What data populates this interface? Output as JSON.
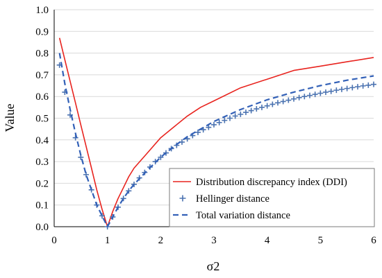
{
  "chart_data": {
    "type": "line",
    "xlabel": "σ2",
    "ylabel": "Value",
    "xlim": [
      0,
      6
    ],
    "ylim": [
      0,
      1
    ],
    "x_ticks": [
      "0",
      "1",
      "2",
      "3",
      "4",
      "5",
      "6"
    ],
    "y_ticks": [
      "0.0",
      "0.1",
      "0.2",
      "0.3",
      "0.4",
      "0.5",
      "0.6",
      "0.7",
      "0.8",
      "0.9",
      "1.0"
    ],
    "grid": "horizontal",
    "legend_position": "bottom-right",
    "series": [
      {
        "name": "Distribution discrepancy index (DDI)",
        "style": "solid-line",
        "color": "#e8231e",
        "x": [
          0.1,
          0.2,
          0.3,
          0.4,
          0.5,
          0.6,
          0.7,
          0.8,
          0.9,
          1.0,
          1.1,
          1.2,
          1.3,
          1.4,
          1.5,
          1.75,
          2.0,
          2.25,
          2.5,
          2.75,
          3.0,
          3.5,
          4.0,
          4.5,
          5.0,
          5.5,
          6.0
        ],
        "y": [
          0.87,
          0.77,
          0.67,
          0.57,
          0.47,
          0.37,
          0.27,
          0.17,
          0.08,
          0.0,
          0.07,
          0.13,
          0.18,
          0.23,
          0.27,
          0.34,
          0.41,
          0.46,
          0.51,
          0.55,
          0.58,
          0.64,
          0.68,
          0.72,
          0.74,
          0.76,
          0.78
        ]
      },
      {
        "name": "Hellinger distance",
        "style": "plus-markers",
        "color": "#4a72b0",
        "x": [
          0.1,
          0.2,
          0.3,
          0.4,
          0.5,
          0.6,
          0.7,
          0.8,
          0.9,
          1.0,
          1.1,
          1.2,
          1.3,
          1.4,
          1.5,
          1.6,
          1.7,
          1.8,
          1.9,
          2.0,
          2.1,
          2.2,
          2.3,
          2.4,
          2.5,
          2.6,
          2.7,
          2.8,
          2.9,
          3.0,
          3.1,
          3.2,
          3.3,
          3.4,
          3.5,
          3.6,
          3.7,
          3.8,
          3.9,
          4.0,
          4.1,
          4.2,
          4.3,
          4.4,
          4.5,
          4.6,
          4.7,
          4.8,
          4.9,
          5.0,
          5.1,
          5.2,
          5.3,
          5.4,
          5.5,
          5.6,
          5.7,
          5.8,
          5.9,
          6.0
        ],
        "y": [
          0.745,
          0.62,
          0.515,
          0.41,
          0.32,
          0.24,
          0.17,
          0.1,
          0.05,
          0.0,
          0.045,
          0.09,
          0.13,
          0.165,
          0.195,
          0.225,
          0.25,
          0.275,
          0.3,
          0.32,
          0.34,
          0.36,
          0.375,
          0.39,
          0.405,
          0.42,
          0.435,
          0.447,
          0.458,
          0.47,
          0.48,
          0.49,
          0.5,
          0.51,
          0.518,
          0.527,
          0.535,
          0.543,
          0.55,
          0.557,
          0.564,
          0.571,
          0.577,
          0.583,
          0.589,
          0.595,
          0.6,
          0.605,
          0.61,
          0.615,
          0.62,
          0.624,
          0.629,
          0.633,
          0.637,
          0.641,
          0.645,
          0.649,
          0.652,
          0.656
        ]
      },
      {
        "name": "Total variation distance",
        "style": "dashed-line",
        "color": "#3260b7",
        "x": [
          0.1,
          0.2,
          0.3,
          0.4,
          0.5,
          0.6,
          0.7,
          0.8,
          0.9,
          1.0,
          1.1,
          1.2,
          1.3,
          1.4,
          1.5,
          1.75,
          2.0,
          2.25,
          2.5,
          2.75,
          3.0,
          3.5,
          4.0,
          4.5,
          5.0,
          5.5,
          6.0
        ],
        "y": [
          0.8,
          0.66,
          0.54,
          0.43,
          0.33,
          0.24,
          0.17,
          0.1,
          0.05,
          0.0,
          0.045,
          0.09,
          0.13,
          0.165,
          0.195,
          0.26,
          0.32,
          0.37,
          0.415,
          0.45,
          0.485,
          0.54,
          0.585,
          0.62,
          0.65,
          0.675,
          0.695
        ]
      }
    ]
  }
}
